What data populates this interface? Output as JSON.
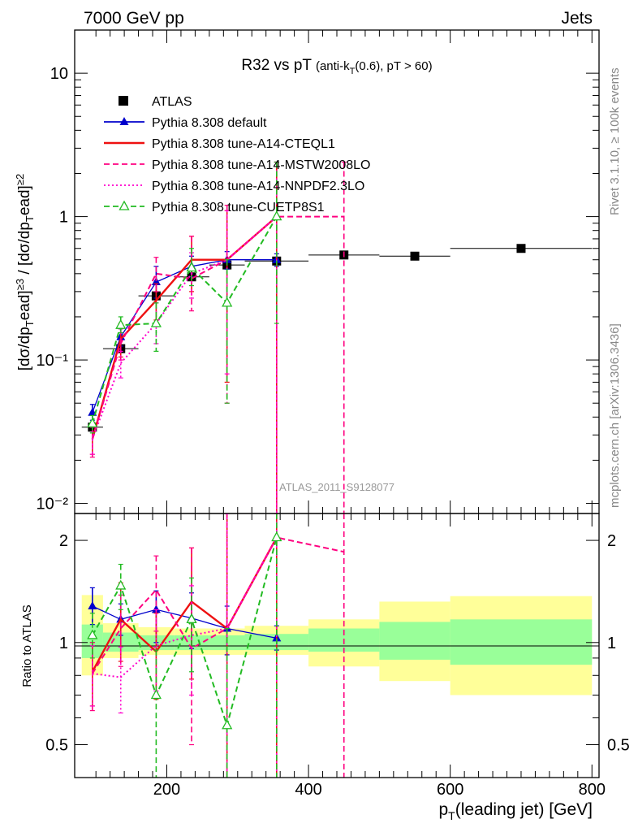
{
  "header": {
    "left": "7000 GeV pp",
    "right": "Jets",
    "side_top": "Rivet 3.1.10, ≥ 100k events",
    "side_bottom": "mcplots.cern.ch [arXiv:1306.3436]",
    "watermark": "ATLAS_2011_S9128077"
  },
  "chart_data": [
    {
      "type": "line",
      "title": "R32 vs pT (anti-k_T(0.6), pT > 60)",
      "ylabel": "[dσ/dp_T^lead]^{≥3} / [dσ/dp_T^lead]^{≥2}",
      "yscale": "log",
      "ylim": [
        0.0085,
        20
      ],
      "xlim": [
        70,
        810
      ],
      "yticks": [
        {
          "value": 0.01,
          "label": "10⁻²"
        },
        {
          "value": 0.1,
          "label": "10⁻¹"
        },
        {
          "value": 1,
          "label": "1"
        },
        {
          "value": 10,
          "label": "10"
        }
      ],
      "legend_position": "top-left",
      "series": [
        {
          "name": "ATLAS",
          "style": "data-squares",
          "color": "#000000",
          "points": [
            {
              "x": 95,
              "xlo": 80,
              "xhi": 110,
              "y": 0.034
            },
            {
              "x": 135,
              "xlo": 110,
              "xhi": 160,
              "y": 0.12
            },
            {
              "x": 185,
              "xlo": 160,
              "xhi": 210,
              "y": 0.28
            },
            {
              "x": 235,
              "xlo": 210,
              "xhi": 260,
              "y": 0.38
            },
            {
              "x": 285,
              "xlo": 260,
              "xhi": 310,
              "y": 0.46
            },
            {
              "x": 355,
              "xlo": 310,
              "xhi": 400,
              "y": 0.49
            },
            {
              "x": 450,
              "xlo": 400,
              "xhi": 500,
              "y": 0.54
            },
            {
              "x": 550,
              "xlo": 500,
              "xhi": 600,
              "y": 0.53
            },
            {
              "x": 700,
              "xlo": 600,
              "xhi": 800,
              "y": 0.6
            }
          ]
        },
        {
          "name": "Pythia 8.308 default",
          "style": "solid-triangles",
          "color": "#0000cc",
          "x": [
            95,
            135,
            185,
            235,
            285,
            355
          ],
          "y": [
            0.043,
            0.145,
            0.35,
            0.45,
            0.5,
            0.5
          ],
          "err": [
            [
              0.038,
              0.049
            ],
            [
              0.125,
              0.165
            ],
            [
              0.27,
              0.45
            ],
            [
              0.38,
              0.53
            ],
            [
              0.43,
              0.57
            ],
            [
              0.45,
              0.55
            ]
          ]
        },
        {
          "name": "Pythia 8.308 tune-A14-CTEQL1",
          "style": "solid",
          "color": "#ee1111",
          "x": [
            95,
            135,
            185,
            235,
            285,
            355
          ],
          "y": [
            0.028,
            0.14,
            0.26,
            0.5,
            0.5,
            1.0
          ],
          "err": [
            [
              0.022,
              0.034
            ],
            [
              0.105,
              0.18
            ],
            [
              0.19,
              0.34
            ],
            [
              0.3,
              0.73
            ],
            [
              0.07,
              1.1
            ],
            [
              0.006,
              2.4
            ]
          ]
        },
        {
          "name": "Pythia 8.308 tune-A14-MSTW2008LO",
          "style": "dashed",
          "color": "#ff0080",
          "x": [
            95,
            135,
            185,
            235,
            285,
            355,
            450
          ],
          "y": [
            0.028,
            0.13,
            0.4,
            0.37,
            0.5,
            1.0,
            1.0
          ],
          "err": [
            [
              0.021,
              0.035
            ],
            [
              0.1,
              0.165
            ],
            [
              0.3,
              0.52
            ],
            [
              0.22,
              0.73
            ],
            [
              0.05,
              1.2
            ],
            [
              0.006,
              2.4
            ],
            [
              0.006,
              2.4
            ]
          ]
        },
        {
          "name": "Pythia 8.308 tune-A14-NNPDF2.3LO",
          "style": "dotted",
          "color": "#ff00cc",
          "x": [
            95,
            135,
            185,
            235,
            285,
            355
          ],
          "y": [
            0.028,
            0.095,
            0.18,
            0.4,
            0.5,
            1.0
          ],
          "err": [
            [
              0.022,
              0.034
            ],
            [
              0.075,
              0.115
            ],
            [
              0.13,
              0.25
            ],
            [
              0.27,
              0.56
            ],
            [
              0.08,
              1.1
            ],
            [
              0.006,
              2.4
            ]
          ]
        },
        {
          "name": "Pythia 8.308 tune-CUETP8S1",
          "style": "dashed-open-triangles",
          "color": "#22bb22",
          "x": [
            95,
            135,
            185,
            235,
            285,
            355
          ],
          "y": [
            0.036,
            0.175,
            0.18,
            0.44,
            0.25,
            1.0
          ],
          "err": [
            [
              0.031,
              0.041
            ],
            [
              0.155,
              0.2
            ],
            [
              0.115,
              0.25
            ],
            [
              0.33,
              0.6
            ],
            [
              0.05,
              0.5
            ],
            [
              0.18,
              2.4
            ]
          ]
        }
      ]
    },
    {
      "type": "line",
      "xlabel": "p_T(leading jet) [GeV]",
      "ylabel": "Ratio to ATLAS",
      "yscale": "log",
      "ylim": [
        0.4,
        2.4
      ],
      "xlim": [
        70,
        810
      ],
      "xticks": [
        200,
        400,
        600,
        800
      ],
      "yticks": [
        0.5,
        1,
        2
      ],
      "bands": {
        "x_edges": [
          80,
          110,
          160,
          210,
          260,
          310,
          400,
          500,
          600,
          800
        ],
        "inner": {
          "color": "#99ff99",
          "lo": [
            0.9,
            0.94,
            0.95,
            0.95,
            0.95,
            0.95,
            0.94,
            0.89,
            0.86
          ],
          "hi": [
            1.13,
            1.07,
            1.05,
            1.05,
            1.05,
            1.06,
            1.1,
            1.15,
            1.17
          ]
        },
        "outer": {
          "color": "#ffff99",
          "lo": [
            0.8,
            0.9,
            0.92,
            0.92,
            0.92,
            0.92,
            0.85,
            0.77,
            0.7
          ],
          "hi": [
            1.38,
            1.14,
            1.11,
            1.1,
            1.1,
            1.12,
            1.17,
            1.32,
            1.37
          ]
        }
      },
      "series": [
        {
          "name": "Pythia 8.308 default",
          "style": "solid-triangles",
          "color": "#0000cc",
          "x": [
            95,
            135,
            185,
            235,
            285,
            355
          ],
          "y": [
            1.28,
            1.17,
            1.25,
            1.18,
            1.1,
            1.03
          ],
          "err": [
            [
              1.13,
              1.45
            ],
            [
              1.05,
              1.3
            ],
            [
              1.0,
              1.42
            ],
            [
              0.96,
              1.4
            ],
            [
              0.92,
              1.28
            ],
            [
              0.95,
              1.12
            ]
          ]
        },
        {
          "name": "Pythia 8.308 tune-A14-CTEQL1",
          "style": "solid",
          "color": "#ee1111",
          "x": [
            95,
            135,
            185,
            235,
            285,
            355
          ],
          "y": [
            0.82,
            1.17,
            0.94,
            1.32,
            1.1,
            2.04
          ],
          "err": [
            [
              0.65,
              1.0
            ],
            [
              0.88,
              1.5
            ],
            [
              0.68,
              1.22
            ],
            [
              0.78,
              1.9
            ],
            [
              0.35,
              2.4
            ],
            [
              0.35,
              2.4
            ]
          ]
        },
        {
          "name": "Pythia 8.308 tune-A14-MSTW2008LO",
          "style": "dashed",
          "color": "#ff0080",
          "x": [
            95,
            135,
            185,
            235,
            285,
            355,
            450
          ],
          "y": [
            0.81,
            1.1,
            1.43,
            0.96,
            1.1,
            2.04,
            1.85
          ],
          "err": [
            [
              0.63,
              1.0
            ],
            [
              0.85,
              1.38
            ],
            [
              1.08,
              1.8
            ],
            [
              0.5,
              1.9
            ],
            [
              0.35,
              2.4
            ],
            [
              0.35,
              2.4
            ],
            [
              0.35,
              2.4
            ]
          ]
        },
        {
          "name": "Pythia 8.308 tune-A14-NNPDF2.3LO",
          "style": "dotted",
          "color": "#ff00cc",
          "x": [
            95,
            135,
            185,
            235,
            285,
            355
          ],
          "y": [
            0.81,
            0.79,
            0.98,
            1.05,
            1.1,
            2.04
          ],
          "err": [
            [
              0.65,
              0.98
            ],
            [
              0.62,
              0.97
            ],
            [
              0.72,
              1.25
            ],
            [
              0.7,
              1.47
            ],
            [
              0.35,
              2.4
            ],
            [
              0.35,
              2.4
            ]
          ]
        },
        {
          "name": "Pythia 8.308 tune-CUETP8S1",
          "style": "dashed-open-triangles",
          "color": "#22bb22",
          "x": [
            95,
            135,
            185,
            235,
            285,
            355
          ],
          "y": [
            1.05,
            1.47,
            0.7,
            1.17,
            0.57,
            2.04
          ],
          "err": [
            [
              0.9,
              1.22
            ],
            [
              1.25,
              1.7
            ],
            [
              0.4,
              0.95
            ],
            [
              0.82,
              1.55
            ],
            [
              0.35,
              1.1
            ],
            [
              0.35,
              2.4
            ]
          ]
        }
      ]
    }
  ]
}
